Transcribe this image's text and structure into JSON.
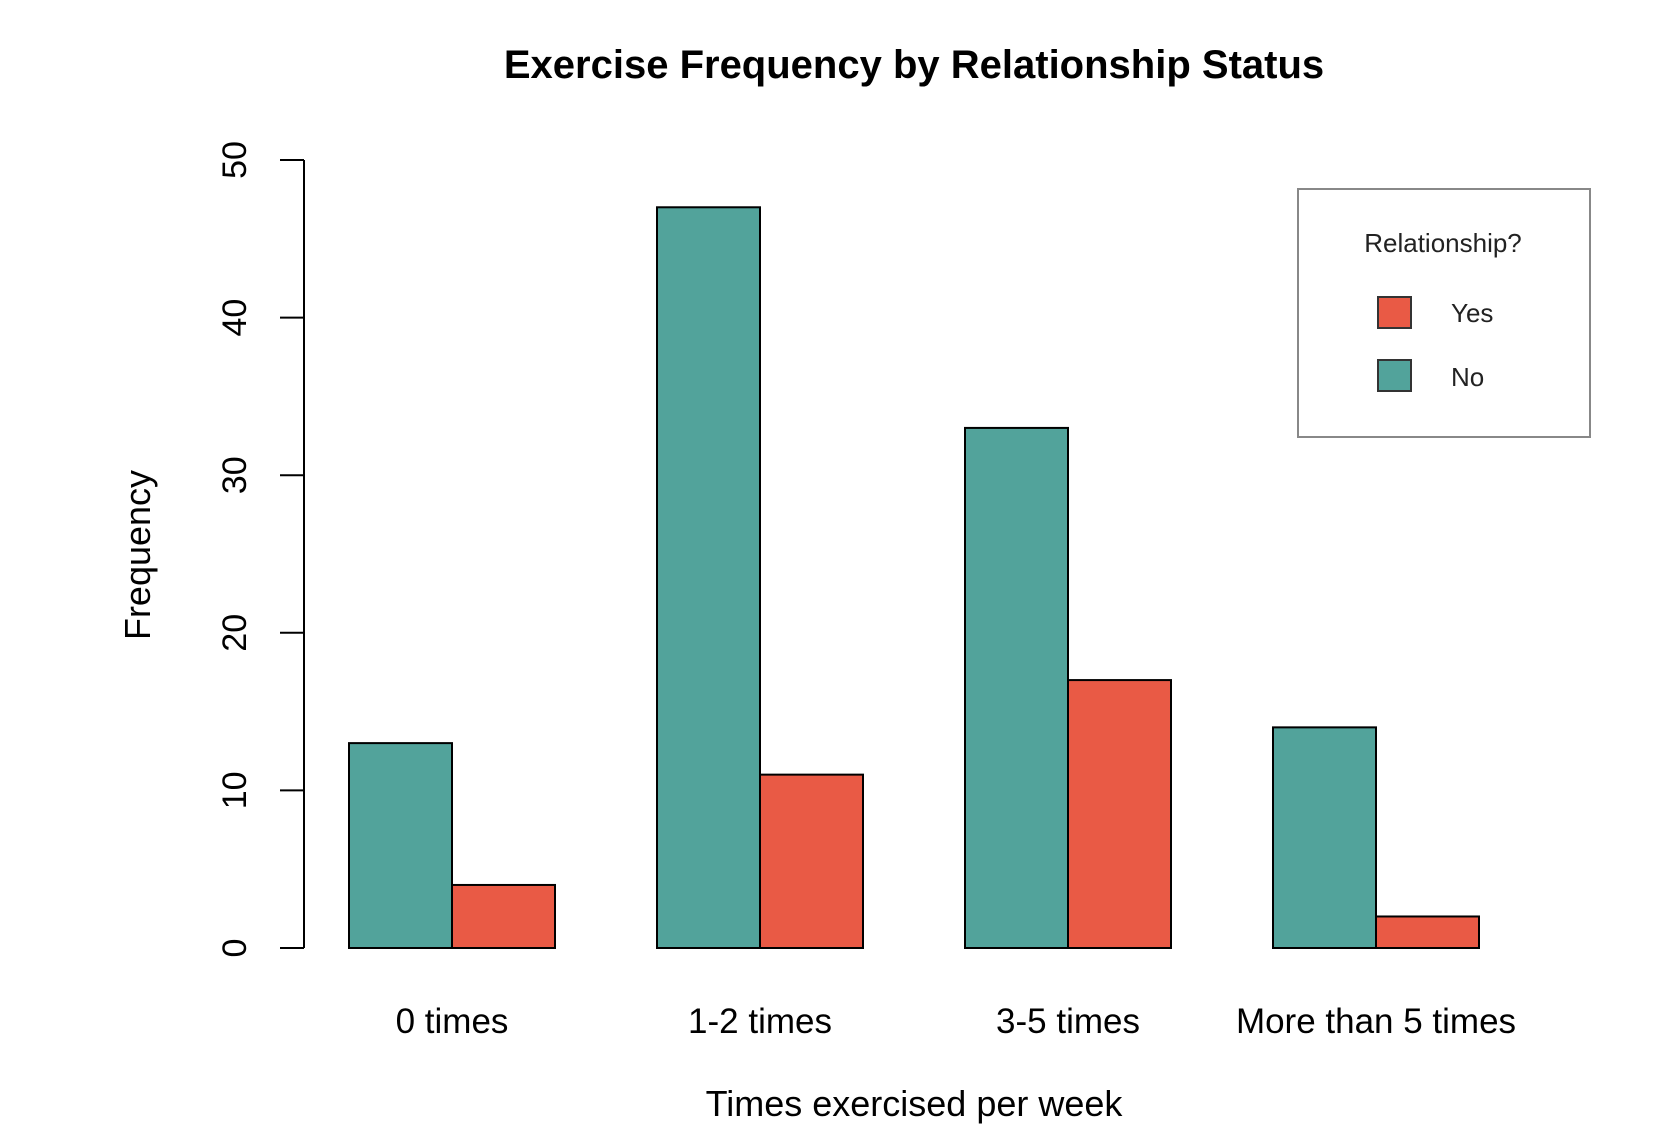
{
  "chart_data": {
    "type": "bar",
    "title": "Exercise Frequency by Relationship Status",
    "xlabel": "Times exercised per week",
    "ylabel": "Frequency",
    "ylim": [
      0,
      50
    ],
    "yticks": [
      "0",
      "10",
      "20",
      "30",
      "40",
      "50"
    ],
    "categories": [
      "0 times",
      "1-2 times",
      "3-5 times",
      "More than 5 times"
    ],
    "series": [
      {
        "name": "No",
        "color": "#52a39b",
        "values": [
          13,
          47,
          33,
          14
        ]
      },
      {
        "name": "Yes",
        "color": "#e95a45",
        "values": [
          4,
          11,
          17,
          2
        ]
      }
    ],
    "legend": {
      "title": "Relationship?",
      "entries": [
        {
          "label": "Yes",
          "color": "#e95a45"
        },
        {
          "label": "No",
          "color": "#52a39b"
        }
      ],
      "position": "top-right"
    }
  }
}
